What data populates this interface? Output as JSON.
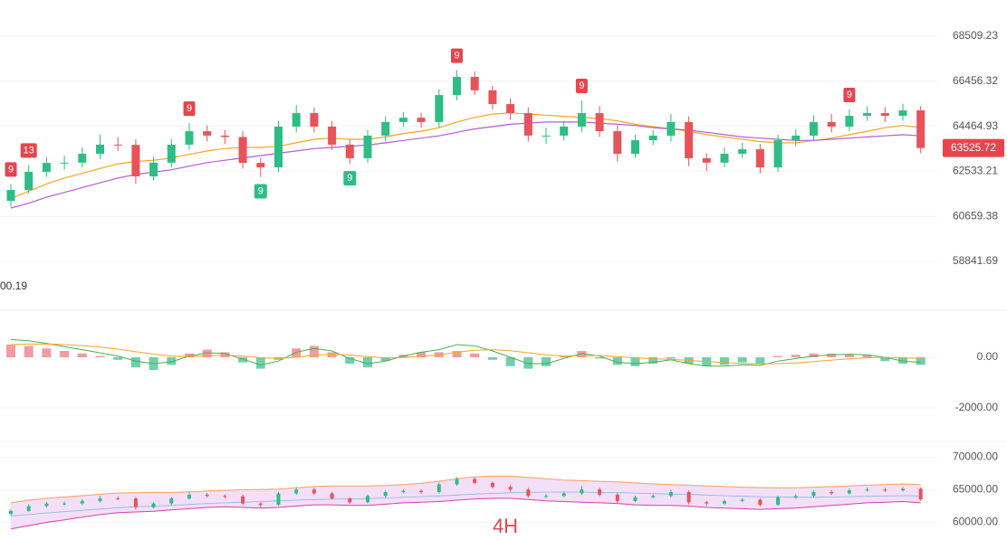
{
  "chart_data": {
    "type": "candlestick",
    "timeframe_label": "4H",
    "indicator_value_text": "00.19",
    "current_price": 63525.72,
    "current_price_color": "#e8444d",
    "log_scale": true,
    "grid": true,
    "up_color": "#2ebd85",
    "down_color": "#e8535a",
    "ylim": [
      57386,
      70204
    ],
    "yticks": [
      68509.23,
      66456.32,
      64464.93,
      62533.21,
      60659.38,
      58841.69
    ],
    "open": [
      61300,
      61750,
      62510,
      62890,
      62900,
      63280,
      63670,
      63660,
      62320,
      62900,
      63670,
      64250,
      64060,
      64000,
      62890,
      62700,
      64450,
      65040,
      64450,
      63670,
      63090,
      64060,
      64650,
      64840,
      64650,
      65840,
      66650,
      66050,
      65440,
      65040,
      64060,
      64060,
      64450,
      65040,
      64250,
      63280,
      63860,
      64060,
      64650,
      63090,
      62900,
      63280,
      63470,
      62700,
      63860,
      64060,
      64650,
      64450,
      64920,
      65040,
      64920,
      65160
    ],
    "high": [
      62000,
      62800,
      63150,
      63200,
      63550,
      64100,
      64000,
      63900,
      63150,
      63900,
      64600,
      64500,
      64300,
      64250,
      63100,
      64700,
      65400,
      65300,
      64700,
      63900,
      64300,
      64900,
      65100,
      65050,
      66100,
      66950,
      66900,
      66250,
      65700,
      65300,
      64400,
      64700,
      65600,
      65350,
      64500,
      64100,
      64300,
      65000,
      64900,
      63300,
      63550,
      63750,
      63700,
      64100,
      64350,
      64950,
      65000,
      65200,
      65350,
      65300,
      65450,
      65350
    ],
    "low": [
      61050,
      61600,
      62300,
      62600,
      62700,
      63050,
      63400,
      62000,
      62150,
      62700,
      63450,
      63800,
      63700,
      62650,
      62300,
      62500,
      64200,
      64200,
      63450,
      62850,
      62900,
      63800,
      64450,
      64400,
      64400,
      65600,
      65850,
      65200,
      64750,
      63800,
      63700,
      63850,
      64200,
      64000,
      62950,
      63100,
      63650,
      63800,
      62750,
      62550,
      62700,
      63100,
      62450,
      62500,
      63600,
      63850,
      64200,
      64250,
      64700,
      64650,
      64700,
      63300
    ],
    "close": [
      61750,
      62510,
      62890,
      62900,
      63280,
      63670,
      63660,
      62320,
      62900,
      63670,
      64250,
      64060,
      64000,
      62890,
      62700,
      64450,
      65040,
      64450,
      63670,
      63090,
      64060,
      64650,
      64840,
      64650,
      65840,
      66650,
      66050,
      65440,
      65040,
      64060,
      64060,
      64450,
      65040,
      64250,
      63280,
      63860,
      64060,
      64650,
      63090,
      62900,
      63280,
      63470,
      62700,
      63860,
      64060,
      64650,
      64450,
      64920,
      65040,
      64920,
      65160,
      63525.72
    ],
    "moving_averages": [
      {
        "color": "#f5a623",
        "values": [
          61400,
          61700,
          62000,
          62250,
          62450,
          62650,
          62850,
          62950,
          63000,
          63100,
          63250,
          63400,
          63500,
          63550,
          63550,
          63600,
          63750,
          63900,
          63950,
          63900,
          63900,
          64000,
          64150,
          64250,
          64400,
          64650,
          64850,
          65000,
          65050,
          65000,
          64950,
          64900,
          64850,
          64800,
          64700,
          64550,
          64450,
          64350,
          64250,
          64100,
          64000,
          63900,
          63800,
          63750,
          63750,
          63850,
          63950,
          64100,
          64250,
          64400,
          64500,
          64400
        ]
      },
      {
        "color": "#b45cd6",
        "values": [
          61000,
          61200,
          61450,
          61650,
          61850,
          62050,
          62250,
          62400,
          62500,
          62600,
          62750,
          62900,
          63000,
          63100,
          63200,
          63300,
          63400,
          63500,
          63550,
          63600,
          63650,
          63750,
          63850,
          63950,
          64050,
          64200,
          64350,
          64450,
          64550,
          64600,
          64650,
          64650,
          64650,
          64600,
          64550,
          64500,
          64400,
          64350,
          64300,
          64200,
          64100,
          64000,
          63950,
          63900,
          63850,
          63850,
          63900,
          63950,
          64000,
          64050,
          64100,
          64050
        ]
      }
    ],
    "sell_signal_color": "#e8444d",
    "buy_signal_color": "#2ebd85",
    "sell_signals": [
      "9",
      "13",
      null,
      null,
      null,
      null,
      null,
      null,
      null,
      null,
      "9",
      null,
      null,
      null,
      null,
      null,
      null,
      null,
      null,
      null,
      null,
      null,
      null,
      null,
      null,
      "9",
      null,
      null,
      null,
      null,
      null,
      null,
      "9",
      null,
      null,
      null,
      null,
      null,
      null,
      null,
      null,
      null,
      null,
      null,
      null,
      null,
      null,
      "9",
      null,
      null,
      null,
      null
    ],
    "buy_signals": [
      null,
      null,
      null,
      null,
      null,
      null,
      null,
      null,
      null,
      null,
      null,
      null,
      null,
      null,
      "9",
      null,
      null,
      null,
      null,
      "9",
      null,
      null,
      null,
      null,
      null,
      null,
      null,
      null,
      null,
      null,
      null,
      null,
      null,
      null,
      null,
      null,
      null,
      null,
      null,
      null,
      null,
      null,
      null,
      null,
      null,
      null,
      null,
      null,
      null,
      null,
      null,
      null
    ],
    "macd": {
      "ylim": [
        -2679,
        1786
      ],
      "yticks": [
        {
          "value": 0,
          "label": "0.00"
        },
        {
          "value": -2000,
          "label": "-2000.00"
        }
      ],
      "positive_color": "#f29ca1",
      "negative_color": "#6fcfae",
      "histogram": [
        500,
        450,
        350,
        250,
        150,
        50,
        -100,
        -400,
        -500,
        -300,
        150,
        300,
        200,
        -200,
        -450,
        -100,
        350,
        450,
        200,
        -250,
        -400,
        -150,
        100,
        200,
        200,
        250,
        150,
        -100,
        -350,
        -450,
        -350,
        50,
        250,
        -50,
        -300,
        -350,
        -250,
        -50,
        -250,
        -350,
        -300,
        -200,
        -250,
        50,
        100,
        150,
        150,
        120,
        100,
        -150,
        -250,
        -300
      ],
      "macd_line": {
        "color": "#4caf50",
        "values": [
          700,
          650,
          550,
          420,
          300,
          180,
          50,
          -150,
          -250,
          -180,
          50,
          180,
          150,
          -80,
          -300,
          -150,
          200,
          350,
          250,
          -50,
          -250,
          -150,
          50,
          200,
          300,
          500,
          450,
          250,
          0,
          -250,
          -250,
          -50,
          150,
          50,
          -200,
          -250,
          -200,
          -100,
          -250,
          -350,
          -350,
          -300,
          -320,
          -150,
          -50,
          50,
          100,
          120,
          100,
          0,
          -150,
          -200
        ]
      },
      "signal_line": {
        "color": "#f5a623",
        "values": [
          500,
          520,
          530,
          500,
          460,
          400,
          320,
          220,
          120,
          50,
          30,
          60,
          80,
          50,
          -20,
          -50,
          0,
          80,
          120,
          90,
          30,
          -20,
          -10,
          40,
          100,
          200,
          280,
          300,
          260,
          180,
          100,
          50,
          60,
          70,
          30,
          -20,
          -60,
          -80,
          -120,
          -170,
          -210,
          -240,
          -260,
          -250,
          -220,
          -170,
          -110,
          -60,
          -20,
          0,
          -20,
          -50
        ]
      }
    },
    "bollinger": {
      "ylim": [
        57300,
        72143
      ],
      "yticks": [
        {
          "value": 70000,
          "label": "70000.00"
        },
        {
          "value": 65000,
          "label": "65000.00"
        },
        {
          "value": 60000,
          "label": "60000.00"
        }
      ],
      "fill_color": "#f3dff8",
      "upper": {
        "color": "#f5a25a",
        "values": [
          63000,
          63400,
          63700,
          63900,
          64100,
          64300,
          64500,
          64550,
          64600,
          64600,
          64700,
          64800,
          64900,
          65000,
          65050,
          65100,
          65300,
          65500,
          65600,
          65600,
          65600,
          65650,
          65800,
          66000,
          66300,
          66700,
          67000,
          67100,
          67100,
          66900,
          66700,
          66500,
          66400,
          66300,
          66200,
          66050,
          65900,
          65800,
          65700,
          65600,
          65500,
          65400,
          65350,
          65300,
          65300,
          65400,
          65500,
          65600,
          65700,
          65800,
          65900,
          65800
        ]
      },
      "lower": {
        "color": "#d63fb0",
        "values": [
          59000,
          59500,
          60000,
          60400,
          60800,
          61200,
          61500,
          61600,
          61700,
          61900,
          62100,
          62300,
          62400,
          62300,
          62200,
          62300,
          62500,
          62700,
          62700,
          62600,
          62600,
          62800,
          63000,
          63100,
          63200,
          63400,
          63600,
          63700,
          63700,
          63500,
          63300,
          63200,
          63100,
          63000,
          62900,
          62700,
          62600,
          62600,
          62500,
          62300,
          62200,
          62100,
          62000,
          62100,
          62200,
          62400,
          62600,
          62800,
          63000,
          63100,
          63200,
          63000
        ]
      }
    }
  }
}
